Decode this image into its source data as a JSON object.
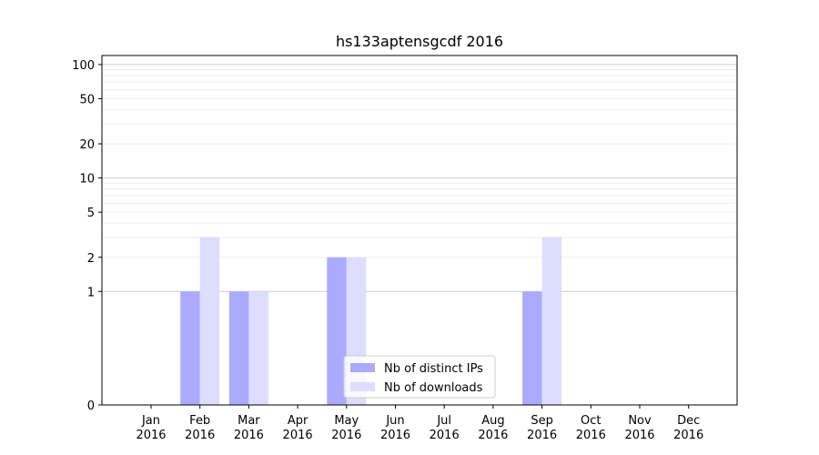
{
  "chart_data": {
    "type": "bar",
    "title": "hs133aptensgcdf 2016",
    "xlabel": "",
    "ylabel": "",
    "y_scale": "symlog",
    "ylim": [
      0,
      120
    ],
    "yticks": [
      0,
      1,
      2,
      5,
      10,
      20,
      50,
      100
    ],
    "grid": true,
    "legend_position": "bottom-center",
    "categories": [
      [
        "Jan",
        "2016"
      ],
      [
        "Feb",
        "2016"
      ],
      [
        "Mar",
        "2016"
      ],
      [
        "Apr",
        "2016"
      ],
      [
        "May",
        "2016"
      ],
      [
        "Jun",
        "2016"
      ],
      [
        "Jul",
        "2016"
      ],
      [
        "Aug",
        "2016"
      ],
      [
        "Sep",
        "2016"
      ],
      [
        "Oct",
        "2016"
      ],
      [
        "Nov",
        "2016"
      ],
      [
        "Dec",
        "2016"
      ]
    ],
    "series": [
      {
        "name": "Nb of distinct IPs",
        "color": "#aaaaff",
        "values": [
          0,
          1,
          1,
          0,
          2,
          0,
          0,
          0,
          1,
          0,
          0,
          0
        ]
      },
      {
        "name": "Nb of downloads",
        "color": "#ddddff",
        "values": [
          0,
          3,
          1,
          0,
          2,
          0,
          0,
          0,
          3,
          0,
          0,
          0
        ]
      }
    ]
  }
}
